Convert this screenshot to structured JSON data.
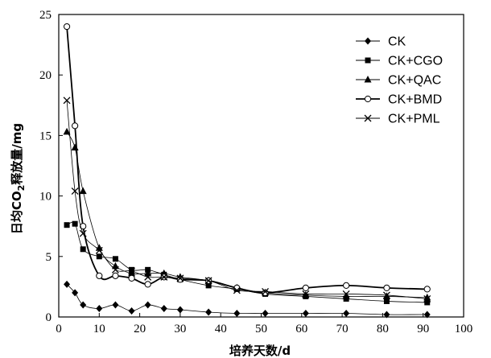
{
  "chart_data": {
    "type": "line",
    "xlabel": "培养天数/d",
    "ylabel_parts": [
      "日均CO",
      "2",
      "释放量/mg"
    ],
    "xlim": [
      0,
      100
    ],
    "ylim": [
      0,
      25
    ],
    "xticks": [
      0,
      10,
      20,
      30,
      40,
      50,
      60,
      70,
      80,
      90,
      100
    ],
    "yticks": [
      0,
      5,
      10,
      15,
      20,
      25
    ],
    "grid": false,
    "legend_position": "top-right",
    "series": [
      {
        "name": "CK",
        "marker": "diamond",
        "style": "thin",
        "x": [
          2,
          4,
          6,
          10,
          14,
          18,
          22,
          26,
          30,
          37,
          44,
          51,
          61,
          71,
          81,
          91
        ],
        "y": [
          2.7,
          2.0,
          1.0,
          0.7,
          1.0,
          0.5,
          1.0,
          0.7,
          0.6,
          0.4,
          0.3,
          0.3,
          0.3,
          0.3,
          0.2,
          0.2
        ]
      },
      {
        "name": "CK+CGO",
        "marker": "square",
        "style": "thin",
        "x": [
          2,
          4,
          6,
          10,
          14,
          18,
          22,
          26,
          30,
          37,
          44,
          51,
          61,
          71,
          81,
          91
        ],
        "y": [
          7.6,
          7.7,
          5.6,
          5.0,
          4.8,
          3.9,
          3.9,
          3.5,
          3.1,
          2.6,
          2.3,
          1.9,
          1.7,
          1.5,
          1.3,
          1.2
        ]
      },
      {
        "name": "CK+QAC",
        "marker": "triangle",
        "style": "thin",
        "x": [
          2,
          4,
          6,
          10,
          14,
          18,
          22,
          26,
          30,
          37,
          44,
          51,
          61,
          71,
          81,
          91
        ],
        "y": [
          15.3,
          14.0,
          10.4,
          5.7,
          4.2,
          3.6,
          3.6,
          3.6,
          3.3,
          3.0,
          2.4,
          2.0,
          1.8,
          1.7,
          1.7,
          1.6
        ]
      },
      {
        "name": "CK+BMD",
        "marker": "circle",
        "style": "thick",
        "x": [
          2,
          4,
          6,
          10,
          14,
          18,
          22,
          26,
          30,
          37,
          44,
          51,
          61,
          71,
          81,
          91
        ],
        "y": [
          24.0,
          15.8,
          7.5,
          3.4,
          3.4,
          3.2,
          2.7,
          3.3,
          3.1,
          3.0,
          2.4,
          2.0,
          2.4,
          2.6,
          2.4,
          2.3
        ]
      },
      {
        "name": "CK+PML",
        "marker": "x",
        "style": "thin",
        "x": [
          2,
          4,
          6,
          10,
          14,
          18,
          22,
          26,
          30,
          37,
          44,
          51,
          61,
          71,
          81,
          91
        ],
        "y": [
          17.9,
          10.4,
          6.9,
          5.5,
          3.9,
          3.8,
          3.3,
          3.3,
          3.2,
          3.0,
          2.2,
          2.1,
          1.9,
          1.9,
          1.8,
          1.5
        ]
      }
    ]
  }
}
